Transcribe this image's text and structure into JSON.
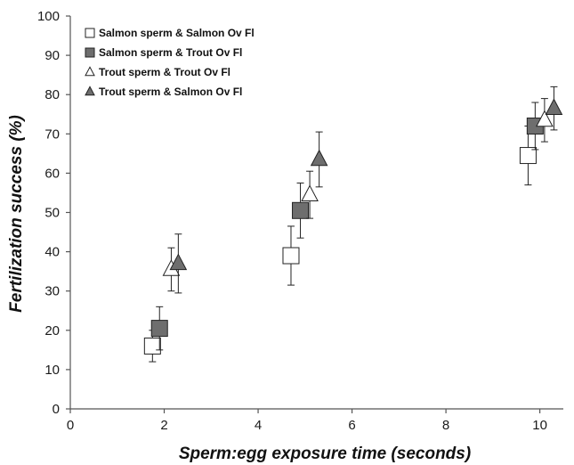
{
  "chart_data": {
    "type": "scatter",
    "title": "",
    "xlabel": "Sperm:egg exposure time (seconds)",
    "ylabel": "Fertilization success (%)",
    "xlim": [
      0,
      10.5
    ],
    "ylim": [
      0,
      100
    ],
    "x_ticks": [
      "0",
      "2",
      "4",
      "6",
      "8",
      "10"
    ],
    "y_ticks": [
      "0",
      "10",
      "20",
      "30",
      "40",
      "50",
      "60",
      "70",
      "80",
      "90",
      "100"
    ],
    "grid": false,
    "legend_position": "top-left",
    "series": [
      {
        "name": "Salmon sperm & Salmon Ov Fl",
        "marker": "square-open",
        "color": "#ffffff",
        "stroke": "#222222",
        "points": [
          {
            "x": 1.75,
            "y": 16,
            "err": 4
          },
          {
            "x": 4.7,
            "y": 39,
            "err": 7.5
          },
          {
            "x": 9.75,
            "y": 64.5,
            "err": 7.5
          }
        ]
      },
      {
        "name": "Salmon sperm & Trout Ov Fl",
        "marker": "square-filled",
        "color": "#6e6e6e",
        "stroke": "#222222",
        "points": [
          {
            "x": 1.9,
            "y": 20.5,
            "err": 5.5
          },
          {
            "x": 4.9,
            "y": 50.5,
            "err": 7
          },
          {
            "x": 9.9,
            "y": 72,
            "err": 6
          }
        ]
      },
      {
        "name": "Trout sperm & Trout Ov Fl",
        "marker": "triangle-open",
        "color": "#ffffff",
        "stroke": "#222222",
        "points": [
          {
            "x": 2.15,
            "y": 35.5,
            "err": 5.5
          },
          {
            "x": 5.1,
            "y": 54.5,
            "err": 6
          },
          {
            "x": 10.1,
            "y": 73.5,
            "err": 5.5
          }
        ]
      },
      {
        "name": "Trout sperm & Salmon Ov Fl",
        "marker": "triangle-filled",
        "color": "#6e6e6e",
        "stroke": "#222222",
        "points": [
          {
            "x": 2.3,
            "y": 37,
            "err": 7.5
          },
          {
            "x": 5.3,
            "y": 63.5,
            "err": 7
          },
          {
            "x": 10.3,
            "y": 76.5,
            "err": 5.5
          }
        ]
      }
    ]
  }
}
